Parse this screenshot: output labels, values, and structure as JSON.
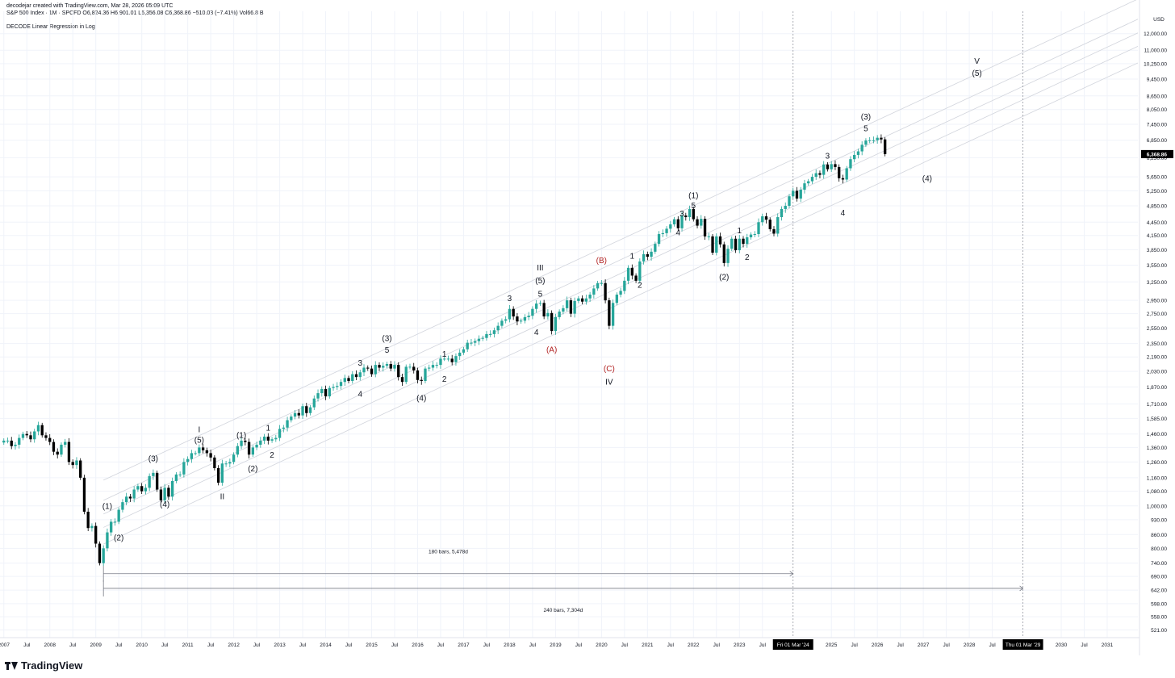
{
  "header": {
    "credit": "decodejar created with TradingView.com, Mar 28, 2026 05:09 UTC",
    "symbol_line": "S&P 500 Index · 1M · SPCFD  O6,824.36  H6,901.01  L6,356.08  C6,368.86  −510.03 (−7.41%)  Vol66.8 B",
    "indicator": "DECODE Linear Regression in Log"
  },
  "brand": {
    "name": "TradingView"
  },
  "colors": {
    "up": "#26a69a",
    "down": "#000000",
    "grid": "#f0f3fa",
    "channel": "#d1d4dc",
    "red_label": "#b22222"
  },
  "chart_data": {
    "type": "candlestick",
    "scale": "log",
    "currency_label": "USD",
    "ylim": [
      500,
      13500
    ],
    "xlim": [
      "2006-12",
      "2031-09"
    ],
    "price_ticks": [
      "12,000.00",
      "11,000.00",
      "10,250.00",
      "9,450.00",
      "8,650.00",
      "8,050.00",
      "7,450.00",
      "6,850.00",
      "6,250.00",
      "5,650.00",
      "5,250.00",
      "4,850.00",
      "4,450.00",
      "4,150.00",
      "3,850.00",
      "3,550.00",
      "3,250.00",
      "2,950.00",
      "2,750.00",
      "2,550.00",
      "2,350.00",
      "2,190.00",
      "2,030.00",
      "1,870.00",
      "1,710.00",
      "1,585.00",
      "1,460.00",
      "1,360.00",
      "1,260.00",
      "1,160.00",
      "1,080.00",
      "1,000.00",
      "930.00",
      "860.00",
      "800.00",
      "740.00",
      "690.00",
      "642.00",
      "598.00",
      "558.00",
      "521.00"
    ],
    "current_price_label": "6,368.86",
    "current_price": 6368.86,
    "time_ticks": [
      {
        "t": "2007-01",
        "label": "2007"
      },
      {
        "t": "2007-07",
        "label": "Jul"
      },
      {
        "t": "2008-01",
        "label": "2008"
      },
      {
        "t": "2008-07",
        "label": "Jul"
      },
      {
        "t": "2009-01",
        "label": "2009"
      },
      {
        "t": "2009-07",
        "label": "Jul"
      },
      {
        "t": "2010-01",
        "label": "2010"
      },
      {
        "t": "2010-07",
        "label": "Jul"
      },
      {
        "t": "2011-01",
        "label": "2011"
      },
      {
        "t": "2011-07",
        "label": "Jul"
      },
      {
        "t": "2012-01",
        "label": "2012"
      },
      {
        "t": "2012-07",
        "label": "Jul"
      },
      {
        "t": "2013-01",
        "label": "2013"
      },
      {
        "t": "2013-07",
        "label": "Jul"
      },
      {
        "t": "2014-01",
        "label": "2014"
      },
      {
        "t": "2014-07",
        "label": "Jul"
      },
      {
        "t": "2015-01",
        "label": "2015"
      },
      {
        "t": "2015-07",
        "label": "Jul"
      },
      {
        "t": "2016-01",
        "label": "2016"
      },
      {
        "t": "2016-07",
        "label": "Jul"
      },
      {
        "t": "2017-01",
        "label": "2017"
      },
      {
        "t": "2017-07",
        "label": "Jul"
      },
      {
        "t": "2018-01",
        "label": "2018"
      },
      {
        "t": "2018-07",
        "label": "Jul"
      },
      {
        "t": "2019-01",
        "label": "2019"
      },
      {
        "t": "2019-07",
        "label": "Jul"
      },
      {
        "t": "2020-01",
        "label": "2020"
      },
      {
        "t": "2020-07",
        "label": "Jul"
      },
      {
        "t": "2021-01",
        "label": "2021"
      },
      {
        "t": "2021-07",
        "label": "Jul"
      },
      {
        "t": "2022-01",
        "label": "2022"
      },
      {
        "t": "2022-07",
        "label": "Jul"
      },
      {
        "t": "2023-01",
        "label": "2023"
      },
      {
        "t": "2023-07",
        "label": "Jul"
      },
      {
        "t": "2025-01",
        "label": "2025"
      },
      {
        "t": "2025-07",
        "label": "Jul"
      },
      {
        "t": "2026-01",
        "label": "2026"
      },
      {
        "t": "2026-07",
        "label": "Jul"
      },
      {
        "t": "2027-01",
        "label": "2027"
      },
      {
        "t": "2027-07",
        "label": "Jul"
      },
      {
        "t": "2028-01",
        "label": "2028"
      },
      {
        "t": "2028-07",
        "label": "Jul"
      },
      {
        "t": "2030-01",
        "label": "2030"
      },
      {
        "t": "2030-07",
        "label": "Jul"
      },
      {
        "t": "2031-01",
        "label": "2031"
      }
    ],
    "markers": [
      {
        "t": "2024-03",
        "label": "Fri 01 Mar '24"
      },
      {
        "t": "2029-03",
        "label": "Thu 01 Mar '29"
      }
    ],
    "ranges": [
      {
        "from": "2009-03",
        "to": "2024-03",
        "price": 700,
        "label": "180 bars, 5,478d",
        "label_price": 780
      },
      {
        "from": "2009-03",
        "to": "2029-03",
        "price": 648,
        "label": "240 bars, 7,304d",
        "label_price": 573
      }
    ],
    "regression_channel": {
      "from": "2009-03",
      "to": "2031-09",
      "lines": [
        {
          "start": 1145,
          "end": 14400
        },
        {
          "start": 1030,
          "end": 12950
        },
        {
          "start": 958,
          "end": 12050
        },
        {
          "start": 893,
          "end": 11230
        },
        {
          "start": 818,
          "end": 10290
        }
      ]
    },
    "wave_labels": [
      {
        "t": "2009-04",
        "price": 985,
        "text": "(1)",
        "color": "black"
      },
      {
        "t": "2009-07",
        "price": 835,
        "text": "(2)",
        "color": "black"
      },
      {
        "t": "2010-04",
        "price": 1265,
        "text": "(3)",
        "color": "black"
      },
      {
        "t": "2010-07",
        "price": 995,
        "text": "(4)",
        "color": "black"
      },
      {
        "t": "2011-04",
        "price": 1475,
        "text": "I",
        "color": "black"
      },
      {
        "t": "2011-04",
        "price": 1395,
        "text": "(5)",
        "color": "black"
      },
      {
        "t": "2011-10",
        "price": 1035,
        "text": "II",
        "color": "black"
      },
      {
        "t": "2012-03",
        "price": 1430,
        "text": "(1)",
        "color": "black"
      },
      {
        "t": "2012-06",
        "price": 1200,
        "text": "(2)",
        "color": "black"
      },
      {
        "t": "2012-10",
        "price": 1485,
        "text": "1",
        "color": "black"
      },
      {
        "t": "2012-11",
        "price": 1290,
        "text": "2",
        "color": "black"
      },
      {
        "t": "2014-10",
        "price": 2090,
        "text": "3",
        "color": "black"
      },
      {
        "t": "2014-10",
        "price": 1775,
        "text": "4",
        "color": "black"
      },
      {
        "t": "2015-05",
        "price": 2380,
        "text": "(3)",
        "color": "black"
      },
      {
        "t": "2015-05",
        "price": 2240,
        "text": "5",
        "color": "black"
      },
      {
        "t": "2016-02",
        "price": 1740,
        "text": "(4)",
        "color": "black"
      },
      {
        "t": "2016-08",
        "price": 2190,
        "text": "1",
        "color": "black"
      },
      {
        "t": "2016-08",
        "price": 1920,
        "text": "2",
        "color": "black"
      },
      {
        "t": "2018-01",
        "price": 2940,
        "text": "3",
        "color": "black"
      },
      {
        "t": "2018-08",
        "price": 2460,
        "text": "4",
        "color": "black"
      },
      {
        "t": "2018-09",
        "price": 3450,
        "text": "III",
        "color": "black"
      },
      {
        "t": "2018-09",
        "price": 3225,
        "text": "(5)",
        "color": "black"
      },
      {
        "t": "2018-09",
        "price": 3005,
        "text": "5",
        "color": "black"
      },
      {
        "t": "2018-12",
        "price": 2245,
        "text": "(A)",
        "color": "red"
      },
      {
        "t": "2020-01",
        "price": 3590,
        "text": "(B)",
        "color": "red"
      },
      {
        "t": "2020-03",
        "price": 2030,
        "text": "(C)",
        "color": "red"
      },
      {
        "t": "2020-03",
        "price": 1895,
        "text": "IV",
        "color": "black"
      },
      {
        "t": "2020-09",
        "price": 3675,
        "text": "1",
        "color": "black"
      },
      {
        "t": "2020-11",
        "price": 3155,
        "text": "2",
        "color": "black"
      },
      {
        "t": "2022-01",
        "price": 5055,
        "text": "(1)",
        "color": "black"
      },
      {
        "t": "2022-01",
        "price": 4790,
        "text": "5",
        "color": "black"
      },
      {
        "t": "2021-10",
        "price": 4590,
        "text": "3",
        "color": "black"
      },
      {
        "t": "2021-09",
        "price": 4150,
        "text": "4",
        "color": "black"
      },
      {
        "t": "2022-09",
        "price": 3290,
        "text": "(2)",
        "color": "black"
      },
      {
        "t": "2023-01",
        "price": 4200,
        "text": "1",
        "color": "black"
      },
      {
        "t": "2023-03",
        "price": 3650,
        "text": "2",
        "color": "black"
      },
      {
        "t": "2024-12",
        "price": 6220,
        "text": "3",
        "color": "black"
      },
      {
        "t": "2025-04",
        "price": 4610,
        "text": "4",
        "color": "black"
      },
      {
        "t": "2025-10",
        "price": 7640,
        "text": "(3)",
        "color": "black"
      },
      {
        "t": "2025-10",
        "price": 7190,
        "text": "5",
        "color": "black"
      },
      {
        "t": "2027-02",
        "price": 5520,
        "text": "(4)",
        "color": "black"
      },
      {
        "t": "2028-03",
        "price": 10250,
        "text": "V",
        "color": "black"
      },
      {
        "t": "2028-03",
        "price": 9610,
        "text": "(5)",
        "color": "black"
      }
    ],
    "closes": [
      [
        1410,
        1410,
        1370,
        1380,
        1430,
        1460,
        1450,
        1420,
        1480,
        1530,
        1450,
        1430,
        1400,
        1330,
        1310,
        1380,
        1400,
        1260,
        1240,
        1270,
        1160,
        970,
        890,
        900,
        820,
        740,
        800,
        870,
        920,
        920,
        980,
        1020,
        1050,
        1040,
        1090,
        1110,
        1080,
        1100,
        1170,
        1190,
        1090,
        1030,
        1100,
        1050,
        1140,
        1180,
        1180,
        1260,
        1280,
        1320,
        1320,
        1360,
        1340,
        1320,
        1290,
        1220,
        1130,
        1250,
        1250,
        1260,
        1310,
        1370,
        1410,
        1400,
        1310,
        1360,
        1380,
        1410,
        1440,
        1410,
        1420,
        1430,
        1500,
        1510,
        1570,
        1600,
        1630,
        1610,
        1690,
        1630,
        1680,
        1760,
        1810,
        1850,
        1780,
        1860,
        1870,
        1880,
        1920,
        1960,
        1930,
        2000,
        1970,
        2020,
        2070,
        2060,
        2000,
        2100,
        2070,
        2090,
        2110,
        2060,
        2100,
        1970,
        1920,
        2080,
        2080,
        2040,
        1940,
        1930,
        2060,
        2070,
        2100,
        2100,
        2170,
        2170,
        2170,
        2130,
        2200,
        2240,
        2280,
        2360,
        2360,
        2380,
        2410,
        2420,
        2470,
        2470,
        2520,
        2580,
        2650,
        2670,
        2820,
        2710,
        2640,
        2650,
        2700,
        2720,
        2820,
        2900,
        2910,
        2710,
        2760,
        2510,
        2700,
        2780,
        2830,
        2950,
        2750,
        2940,
        2980,
        2930,
        2980,
        3040,
        3140,
        3230,
        3230,
        2950,
        2580,
        2910,
        3040,
        3100,
        3270,
        3500,
        3360,
        3270,
        3620,
        3760,
        3710,
        3810,
        3970,
        4180,
        4200,
        4300,
        4400,
        4520,
        4310,
        4610,
        4570,
        4770,
        4520,
        4370,
        4530,
        4130,
        4130,
        3790,
        4130,
        3960,
        3590,
        3870,
        4080,
        3840,
        4080,
        3970,
        4110,
        4170,
        4180,
        4450,
        4590,
        4510,
        4290,
        4190,
        4570,
        4770,
        4850,
        5100,
        5250,
        5040,
        5280,
        5460,
        5520,
        5650,
        5760,
        5710,
        6030,
        5880,
        6040,
        5950,
        5610,
        5570,
        5910,
        6200,
        6340,
        6460,
        6690,
        6840,
        6850,
        6850,
        6940,
        6880,
        6369
      ]
    ]
  }
}
